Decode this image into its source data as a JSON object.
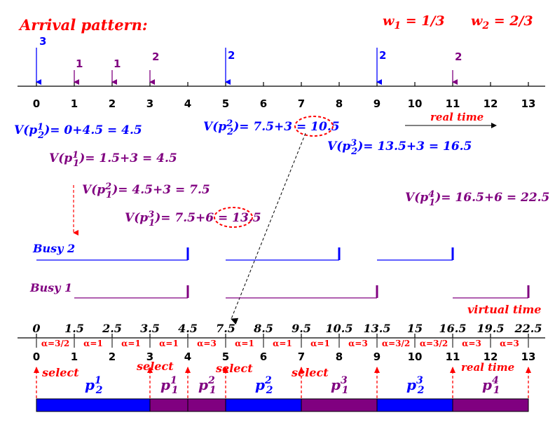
{
  "colors": {
    "red": "#ff0000",
    "blue": "#0000ff",
    "purple": "#800080",
    "black": "#000000"
  },
  "title": "Arrival pattern:",
  "weights": {
    "w1": "w1 = 1/3",
    "w2": "w2 = 2/3"
  },
  "top_axis_ticks": [
    "0",
    "1",
    "2",
    "3",
    "4",
    "5",
    "6",
    "7",
    "8",
    "9",
    "10",
    "11",
    "12",
    "13"
  ],
  "real_time_label": "real time",
  "arrivals": [
    {
      "time": 0,
      "count": "3",
      "flow": 2
    },
    {
      "time": 1,
      "count": "1",
      "flow": 1
    },
    {
      "time": 2,
      "count": "1",
      "flow": 1
    },
    {
      "time": 3,
      "count": "2",
      "flow": 1
    },
    {
      "time": 5,
      "count": "2",
      "flow": 2
    },
    {
      "time": 9,
      "count": "2",
      "flow": 2
    },
    {
      "time": 11,
      "count": "2",
      "flow": 1
    }
  ],
  "formulas": [
    {
      "id": "v-p2-1",
      "flow": 2,
      "sub": "2",
      "sup": "1",
      "rhs": "= 0+4.5 = 4.5"
    },
    {
      "id": "v-p1-1",
      "flow": 1,
      "sub": "1",
      "sup": "1",
      "rhs": "= 1.5+3 = 4.5"
    },
    {
      "id": "v-p1-2",
      "flow": 1,
      "sub": "1",
      "sup": "2",
      "rhs": "= 4.5+3 = 7.5"
    },
    {
      "id": "v-p1-3",
      "flow": 1,
      "sub": "1",
      "sup": "3",
      "rhs": "= 7.5+6 = 13.5"
    },
    {
      "id": "v-p2-2",
      "flow": 2,
      "sub": "2",
      "sup": "2",
      "rhs": "= 7.5+3 = 10.5"
    },
    {
      "id": "v-p2-3",
      "flow": 2,
      "sub": "2",
      "sup": "3",
      "rhs": "= 13.5+3 = 16.5"
    },
    {
      "id": "v-p1-4",
      "flow": 1,
      "sub": "1",
      "sup": "4",
      "rhs": "= 16.5+6 = 22.5"
    }
  ],
  "busy": {
    "busy2_label": "Busy 2",
    "busy1_label": "Busy 1",
    "busy2_periods": [
      [
        0,
        4
      ],
      [
        5,
        8
      ],
      [
        9,
        11
      ]
    ],
    "busy1_periods": [
      [
        1,
        4
      ],
      [
        5,
        9
      ],
      [
        11,
        13
      ]
    ]
  },
  "virtual_time_label": "virtual time",
  "virtual_ticks": [
    "0",
    "1.5",
    "2.5",
    "3.5",
    "4.5",
    "7.5",
    "8.5",
    "9.5",
    "10.5",
    "13.5",
    "15",
    "16.5",
    "19.5",
    "22.5"
  ],
  "alpha_labels": [
    "α=3/2",
    "α=1",
    "α=1",
    "α=1",
    "α=3",
    "α=1",
    "α=1",
    "α=1",
    "α=3",
    "α=3/2",
    "α=3/2",
    "α=3",
    "α=3"
  ],
  "bottom_axis_ticks": [
    "0",
    "1",
    "2",
    "3",
    "4",
    "5",
    "6",
    "7",
    "8",
    "9",
    "10",
    "11",
    "12",
    "13"
  ],
  "select_label": "select",
  "select_times": [
    0,
    3,
    4,
    5,
    7,
    9,
    11,
    13
  ],
  "select_labels_at": [
    0,
    3,
    5,
    7
  ],
  "bottom_real_time_label": "real time",
  "schedule": [
    {
      "start": 0,
      "end": 3,
      "flow": 2,
      "sub": "2",
      "sup": "1"
    },
    {
      "start": 3,
      "end": 4,
      "flow": 1,
      "sub": "1",
      "sup": "1"
    },
    {
      "start": 4,
      "end": 5,
      "flow": 1,
      "sub": "1",
      "sup": "2"
    },
    {
      "start": 5,
      "end": 7,
      "flow": 2,
      "sub": "2",
      "sup": "2"
    },
    {
      "start": 7,
      "end": 9,
      "flow": 1,
      "sub": "1",
      "sup": "3"
    },
    {
      "start": 9,
      "end": 11,
      "flow": 2,
      "sub": "2",
      "sup": "3"
    },
    {
      "start": 11,
      "end": 13,
      "flow": 1,
      "sub": "1",
      "sup": "4"
    }
  ]
}
